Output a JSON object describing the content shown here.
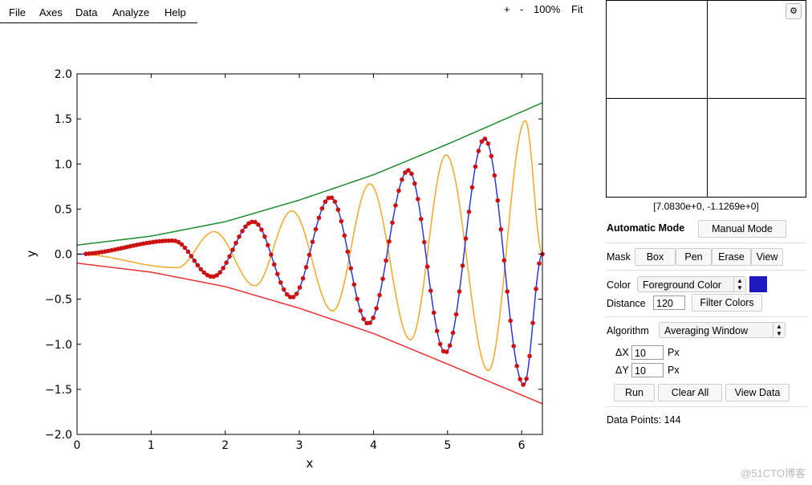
{
  "menu": [
    "File",
    "Axes",
    "Data",
    "Analyze",
    "Help"
  ],
  "zoom": {
    "plus": "+",
    "minus": "-",
    "level": "100%",
    "fit": "Fit"
  },
  "magnifier": {
    "coords": "[7.0830e+0, -1.1269e+0]",
    "settings_icon": "gear-icon"
  },
  "mode": {
    "automatic": "Automatic Mode",
    "manual": "Manual Mode"
  },
  "mask": {
    "label": "Mask",
    "box": "Box",
    "pen": "Pen",
    "erase": "Erase",
    "view": "View"
  },
  "color": {
    "label": "Color",
    "selected": "Foreground Color",
    "swatch": "#1a1abf"
  },
  "distance": {
    "label": "Distance",
    "value": "120",
    "filter_button": "Filter Colors"
  },
  "algorithm": {
    "label": "Algorithm",
    "selected": "Averaging Window"
  },
  "delta_x": {
    "label": "ΔX",
    "value": "10",
    "unit": "Px"
  },
  "delta_y": {
    "label": "ΔY",
    "value": "10",
    "unit": "Px"
  },
  "actions": {
    "run": "Run",
    "clear": "Clear All",
    "view_data": "View Data"
  },
  "status": {
    "data_points": "Data Points: 144"
  },
  "watermark": "@51CTO博客",
  "chart_data": {
    "type": "line",
    "xlabel": "x",
    "ylabel": "y",
    "xlim": [
      0,
      6.28
    ],
    "ylim": [
      -2.0,
      2.0
    ],
    "xticks": [
      0,
      1,
      2,
      3,
      4,
      5,
      6
    ],
    "yticks": [
      2.0,
      1.5,
      1.0,
      0.5,
      0.0,
      -0.5,
      -1.0,
      -1.5,
      -2.0
    ],
    "grid": false,
    "series": [
      {
        "color": "#1e8a2e",
        "formula": "upper envelope",
        "points": [
          [
            0,
            0.1
          ],
          [
            1,
            0.2
          ],
          [
            2,
            0.36
          ],
          [
            3,
            0.6
          ],
          [
            4,
            0.88
          ],
          [
            5,
            1.22
          ],
          [
            6.28,
            1.68
          ]
        ]
      },
      {
        "color": "#e83030",
        "formula": "lower envelope",
        "points": [
          [
            0,
            -0.1
          ],
          [
            1,
            -0.2
          ],
          [
            2,
            -0.36
          ],
          [
            3,
            -0.6
          ],
          [
            4,
            -0.88
          ],
          [
            5,
            -1.22
          ],
          [
            6.28,
            -1.66
          ]
        ]
      },
      {
        "color": "#f5a623",
        "formula": "oscillation A",
        "peaks": [
          [
            1.85,
            0.25
          ],
          [
            2.9,
            0.48
          ],
          [
            3.95,
            0.78
          ],
          [
            4.98,
            1.1
          ],
          [
            6.05,
            1.48
          ]
        ],
        "troughs": [
          [
            1.35,
            -0.15
          ],
          [
            2.4,
            -0.35
          ],
          [
            3.45,
            -0.63
          ],
          [
            4.5,
            -0.95
          ],
          [
            5.55,
            -1.29
          ]
        ]
      },
      {
        "color": "#2a36e0",
        "formula": "oscillation B (digitized)",
        "peaks": [
          [
            1.3,
            0.15
          ],
          [
            2.38,
            0.36
          ],
          [
            3.42,
            0.63
          ],
          [
            4.47,
            0.93
          ],
          [
            5.5,
            1.28
          ]
        ],
        "troughs": [
          [
            1.83,
            -0.25
          ],
          [
            2.9,
            -0.48
          ],
          [
            3.93,
            -0.77
          ],
          [
            4.97,
            -1.09
          ],
          [
            6.03,
            -1.45
          ]
        ]
      }
    ],
    "digitized_points": {
      "count": 144,
      "color": "#cc1111"
    }
  }
}
